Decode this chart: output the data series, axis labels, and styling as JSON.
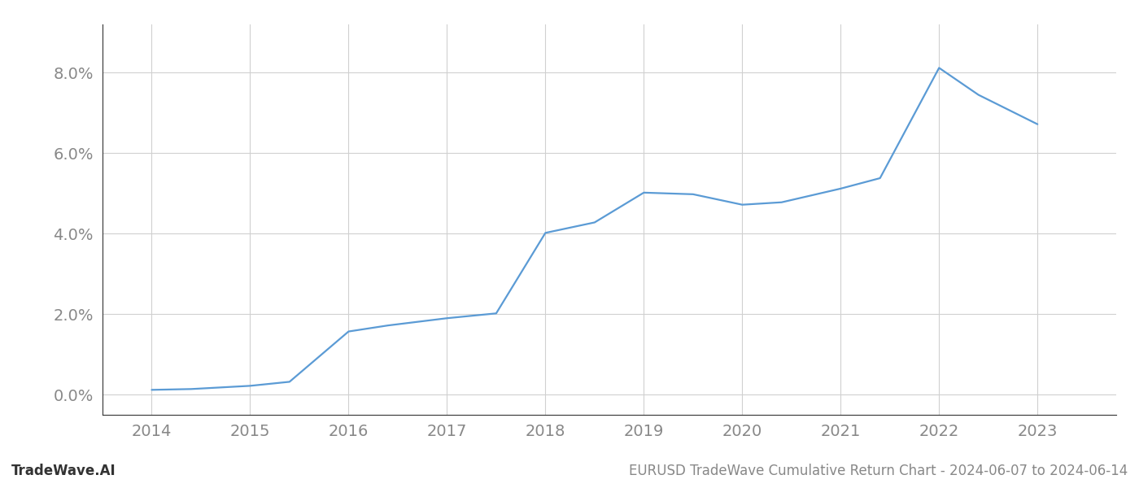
{
  "x": [
    2014.0,
    2014.4,
    2015.0,
    2015.4,
    2016.0,
    2016.4,
    2017.0,
    2017.5,
    2018.0,
    2018.5,
    2019.0,
    2019.5,
    2020.0,
    2020.4,
    2021.0,
    2021.4,
    2022.0,
    2022.4,
    2023.0
  ],
  "y": [
    0.12,
    0.14,
    0.22,
    0.32,
    1.57,
    1.72,
    1.9,
    2.02,
    4.02,
    4.28,
    5.02,
    4.98,
    4.72,
    4.78,
    5.12,
    5.38,
    8.12,
    7.45,
    6.72
  ],
  "line_color": "#5b9bd5",
  "line_width": 1.6,
  "bg_color": "#ffffff",
  "grid_color": "#d0d0d0",
  "xlabel": "",
  "ylabel": "",
  "xlim": [
    2013.5,
    2023.8
  ],
  "ylim": [
    -0.5,
    9.2
  ],
  "yticks": [
    0.0,
    2.0,
    4.0,
    6.0,
    8.0
  ],
  "ytick_labels": [
    "0.0%",
    "2.0%",
    "4.0%",
    "6.0%",
    "8.0%"
  ],
  "xticks": [
    2014,
    2015,
    2016,
    2017,
    2018,
    2019,
    2020,
    2021,
    2022,
    2023
  ],
  "xtick_labels": [
    "2014",
    "2015",
    "2016",
    "2017",
    "2018",
    "2019",
    "2020",
    "2021",
    "2022",
    "2023"
  ],
  "footer_left": "TradeWave.AI",
  "footer_right": "EURUSD TradeWave Cumulative Return Chart - 2024-06-07 to 2024-06-14",
  "axis_color": "#333333",
  "tick_color": "#888888",
  "font_size_ticks": 14,
  "font_size_footer": 12,
  "left_spine_color": "#333333"
}
